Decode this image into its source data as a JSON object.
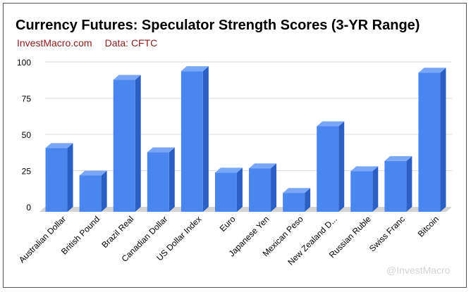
{
  "header": {
    "title": "Currency Futures: Speculator Strength Scores (3-YR Range)",
    "site": "InvestMacro.com",
    "source": "Data: CFTC"
  },
  "watermark": "@InvestMacro",
  "colors": {
    "bar_front": "#4a86f0",
    "bar_top": "#79a6f7",
    "bar_side": "#2b5fc4",
    "grid": "#dddddd"
  },
  "chart_data": {
    "type": "bar",
    "title": "Currency Futures: Speculator Strength Scores (3-YR Range)",
    "xlabel": "",
    "ylabel": "",
    "ylim": [
      0,
      100
    ],
    "yticks": [
      0,
      25,
      50,
      75,
      100
    ],
    "grid": true,
    "categories": [
      "Australian Dollar",
      "British Pound",
      "Brazil Real",
      "Canadian Dollar",
      "US Dollar Index",
      "Euro",
      "Japanese Yen",
      "Mexican Peso",
      "New Zealand D...",
      "Russian Ruble",
      "Swiss Franc",
      "Bitcoin"
    ],
    "values": [
      44,
      25,
      91,
      41,
      97,
      27,
      30,
      13,
      59,
      28,
      35,
      96
    ]
  }
}
